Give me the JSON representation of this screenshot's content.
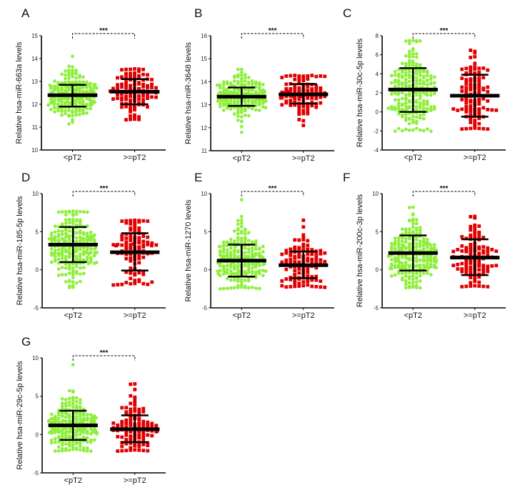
{
  "figure": {
    "background": "#ffffff",
    "colors": {
      "group1": "#8fef3c",
      "group2": "#e00000",
      "bars": "#000000"
    }
  },
  "chart_data": [
    {
      "panel": "A",
      "type": "scatter",
      "ylabel": "Relative hsa-miR-663a levels",
      "categories": [
        "<pT2",
        ">=pT2"
      ],
      "ylim": [
        10,
        15
      ],
      "yticks": [
        10,
        11,
        12,
        13,
        14,
        15
      ],
      "significance": "***",
      "series": [
        {
          "name": "<pT2",
          "mean": 12.4,
          "sd_low": 11.9,
          "sd_high": 12.85,
          "min": 11.15,
          "max": 14.1,
          "marker": "circle"
        },
        {
          "name": ">=pT2",
          "mean": 12.55,
          "sd_low": 12.0,
          "sd_high": 13.1,
          "min": 11.35,
          "max": 13.55,
          "marker": "square"
        }
      ]
    },
    {
      "panel": "B",
      "type": "scatter",
      "ylabel": "Relative hsa-miR-3648 levels",
      "categories": [
        "<pT2",
        ">=pT2"
      ],
      "ylim": [
        11,
        16
      ],
      "yticks": [
        11,
        12,
        13,
        14,
        15,
        16
      ],
      "significance": "***",
      "series": [
        {
          "name": "<pT2",
          "mean": 13.35,
          "sd_low": 12.95,
          "sd_high": 13.75,
          "min": 11.8,
          "max": 14.55,
          "marker": "circle"
        },
        {
          "name": ">=pT2",
          "mean": 13.45,
          "sd_low": 13.05,
          "sd_high": 13.9,
          "min": 12.1,
          "max": 14.3,
          "marker": "square"
        }
      ]
    },
    {
      "panel": "C",
      "type": "scatter",
      "ylabel": "Relative hsa-miR-30c-5p levels",
      "categories": [
        "<pT2",
        ">=pT2"
      ],
      "ylim": [
        -4,
        8
      ],
      "yticks": [
        -4,
        -2,
        0,
        2,
        4,
        6,
        8
      ],
      "significance": "***",
      "series": [
        {
          "name": "<pT2",
          "mean": 2.35,
          "sd_low": 0.0,
          "sd_high": 4.6,
          "min": -1.9,
          "max": 7.5,
          "marker": "circle"
        },
        {
          "name": ">=pT2",
          "mean": 1.7,
          "sd_low": -0.5,
          "sd_high": 3.9,
          "min": -1.7,
          "max": 6.5,
          "marker": "square"
        }
      ]
    },
    {
      "panel": "D",
      "type": "scatter",
      "ylabel": "Relative hsa-miR-185-5p levels",
      "categories": [
        "<pT2",
        ">=pT2"
      ],
      "ylim": [
        -5,
        10
      ],
      "yticks": [
        -5,
        0,
        5,
        10
      ],
      "significance": "***",
      "series": [
        {
          "name": "<pT2",
          "mean": 3.3,
          "sd_low": 1.0,
          "sd_high": 5.6,
          "min": -2.3,
          "max": 7.7,
          "marker": "circle"
        },
        {
          "name": ">=pT2",
          "mean": 2.3,
          "sd_low": -0.1,
          "sd_high": 4.8,
          "min": -1.8,
          "max": 6.5,
          "marker": "square"
        }
      ]
    },
    {
      "panel": "E",
      "type": "scatter",
      "ylabel": "Relative hsa-miR-1270 levels",
      "categories": [
        "<pT2",
        ">=pT2"
      ],
      "ylim": [
        -5,
        10
      ],
      "yticks": [
        -5,
        0,
        5,
        10
      ],
      "significance": "***",
      "series": [
        {
          "name": "<pT2",
          "mean": 1.2,
          "sd_low": -0.9,
          "sd_high": 3.3,
          "min": -2.3,
          "max": 9.2,
          "marker": "circle"
        },
        {
          "name": ">=pT2",
          "mean": 0.6,
          "sd_low": -1.1,
          "sd_high": 2.4,
          "min": -2.1,
          "max": 6.5,
          "marker": "square"
        }
      ]
    },
    {
      "panel": "F",
      "type": "scatter",
      "ylabel": "Relative hsa-miR-200c-3p levels",
      "categories": [
        "<pT2",
        ">=pT2"
      ],
      "ylim": [
        -5,
        10
      ],
      "yticks": [
        -5,
        0,
        5,
        10
      ],
      "significance": "***",
      "series": [
        {
          "name": "<pT2",
          "mean": 2.2,
          "sd_low": -0.1,
          "sd_high": 4.5,
          "min": -2.3,
          "max": 8.2,
          "marker": "circle"
        },
        {
          "name": ">=pT2",
          "mean": 1.6,
          "sd_low": -0.7,
          "sd_high": 4.0,
          "min": -2.1,
          "max": 7.0,
          "marker": "square"
        }
      ]
    },
    {
      "panel": "G",
      "type": "scatter",
      "ylabel": "Relative hsa-miR-29c-5p levels",
      "categories": [
        "<pT2",
        ">=pT2"
      ],
      "ylim": [
        -5,
        10
      ],
      "yticks": [
        -5,
        0,
        5,
        10
      ],
      "significance": "***",
      "series": [
        {
          "name": "<pT2",
          "mean": 1.2,
          "sd_low": -0.7,
          "sd_high": 3.1,
          "min": -2.0,
          "max": 9.1,
          "marker": "circle"
        },
        {
          "name": ">=pT2",
          "mean": 0.7,
          "sd_low": -1.0,
          "sd_high": 2.5,
          "min": -2.0,
          "max": 6.6,
          "marker": "square"
        }
      ]
    }
  ]
}
